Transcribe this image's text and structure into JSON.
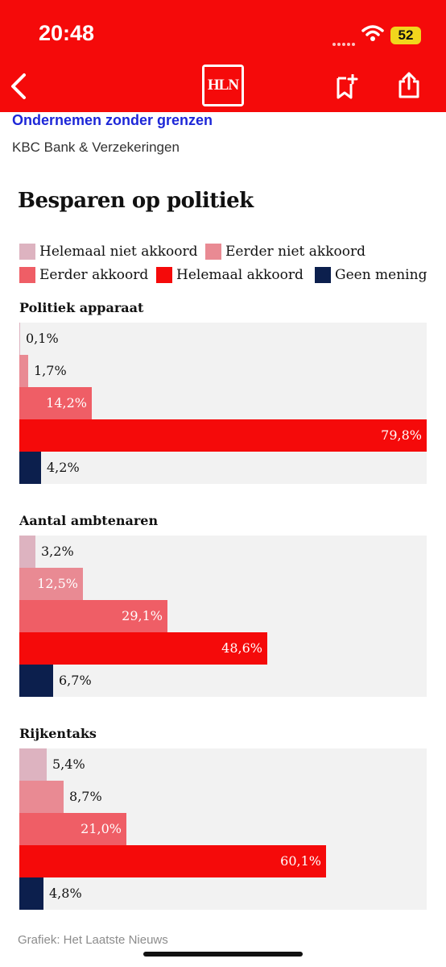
{
  "status_bar": {
    "time": "20:48",
    "battery": "52"
  },
  "nav": {
    "logo_text": "HLN"
  },
  "sponsor": {
    "title": "Ondernemen zonder grenzen",
    "name": "KBC Bank & Verzekeringen"
  },
  "colors": {
    "brand_red": "#f50a0a",
    "helemaal_niet_akkoord": "#ddb3c0",
    "eerder_niet_akkoord": "#e98a93",
    "eerder_akkoord": "#ef5e66",
    "helemaal_akkoord": "#f50a0a",
    "geen_mening": "#0c1f4d"
  },
  "chart_data": {
    "type": "bar",
    "orientation": "horizontal",
    "title": "Besparen op politiek",
    "legend": [
      "Helemaal niet akkoord",
      "Eerder niet akkoord",
      "Eerder akkoord",
      "Helemaal akkoord",
      "Geen mening"
    ],
    "legend_placement": "top",
    "xlim": [
      0,
      80
    ],
    "unit": "%",
    "groups": [
      {
        "title": "Politiek apparaat",
        "values": [
          0.1,
          1.7,
          14.2,
          79.8,
          4.2
        ],
        "labels": [
          "0,1%",
          "1,7%",
          "14,2%",
          "79,8%",
          "4,2%"
        ]
      },
      {
        "title": "Aantal ambtenaren",
        "values": [
          3.2,
          12.5,
          29.1,
          48.6,
          6.7
        ],
        "labels": [
          "3,2%",
          "12,5%",
          "29,1%",
          "48,6%",
          "6,7%"
        ]
      },
      {
        "title": "Rijkentaks",
        "values": [
          5.4,
          8.7,
          21.0,
          60.1,
          4.8
        ],
        "labels": [
          "5,4%",
          "8,7%",
          "21,0%",
          "60,1%",
          "4,8%"
        ]
      }
    ]
  },
  "credit": "Grafiek: Het Laatste Nieuws"
}
